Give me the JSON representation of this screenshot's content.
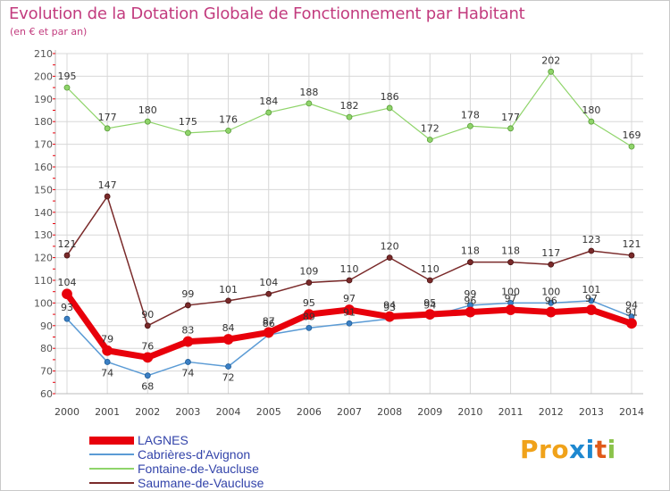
{
  "header": {
    "title": "Evolution de la Dotation Globale de Fonctionnement par Habitant",
    "subtitle": "(en € et par an)"
  },
  "logo": {
    "text": "Proxiti",
    "letters": [
      "P",
      "r",
      "o",
      "x",
      "i",
      "t",
      "i"
    ],
    "colors": [
      "#f0a21a",
      "#f0a21a",
      "#f0a21a",
      "#1e88d0",
      "#1e88d0",
      "#e05a1a",
      "#8bc34a"
    ]
  },
  "chart_data": {
    "type": "line",
    "title": "Evolution de la Dotation Globale de Fonctionnement par Habitant",
    "subtitle": "(en € et par an)",
    "xlabel": "",
    "ylabel": "",
    "ylim": [
      60,
      210
    ],
    "yticks": [
      "60",
      "70",
      "80",
      "90",
      "100",
      "110",
      "120",
      "130",
      "140",
      "150",
      "160",
      "170",
      "180",
      "190",
      "200",
      "210"
    ],
    "x": [
      "2000",
      "2001",
      "2002",
      "2003",
      "2004",
      "2005",
      "2006",
      "2007",
      "2008",
      "2009",
      "2010",
      "2011",
      "2012",
      "2013",
      "2014"
    ],
    "grid": true,
    "legend_position": "bottom-left",
    "series": [
      {
        "name": "LAGNES",
        "color": "#e8000b",
        "values": [
          104,
          79,
          76,
          83,
          84,
          87,
          95,
          97,
          94,
          95,
          96,
          97,
          96,
          97,
          91
        ],
        "labels": [
          "104",
          "79",
          "76",
          "83",
          "84",
          "87",
          "95",
          "97",
          "94",
          "95",
          "96",
          "97",
          "96",
          "97",
          "91"
        ]
      },
      {
        "name": "Cabrières-d'Avignon",
        "color": "#5b9bd5",
        "values": [
          93,
          74,
          68,
          74,
          72,
          86,
          89,
          91,
          93,
          94,
          99,
          100,
          100,
          101,
          94
        ],
        "labels": [
          "93",
          "74",
          "68",
          "74",
          "72",
          "86",
          "89",
          "91",
          "93",
          "94",
          "99",
          "100",
          "100",
          "101",
          "94"
        ]
      },
      {
        "name": "Fontaine-de-Vaucluse",
        "color": "#8fd46a",
        "values": [
          195,
          177,
          180,
          175,
          176,
          184,
          188,
          182,
          186,
          172,
          178,
          177,
          202,
          180,
          169
        ],
        "labels": [
          "195",
          "177",
          "180",
          "175",
          "176",
          "184",
          "188",
          "182",
          "186",
          "172",
          "178",
          "177",
          "202",
          "180",
          "169"
        ]
      },
      {
        "name": "Saumane-de-Vaucluse",
        "color": "#7a2a2a",
        "values": [
          121,
          147,
          90,
          99,
          101,
          104,
          109,
          110,
          120,
          110,
          118,
          118,
          117,
          123,
          121
        ],
        "labels": [
          "121",
          "147",
          "90",
          "99",
          "101",
          "104",
          "109",
          "110",
          "120",
          "110",
          "118",
          "118",
          "117",
          "123",
          "121"
        ]
      }
    ]
  }
}
